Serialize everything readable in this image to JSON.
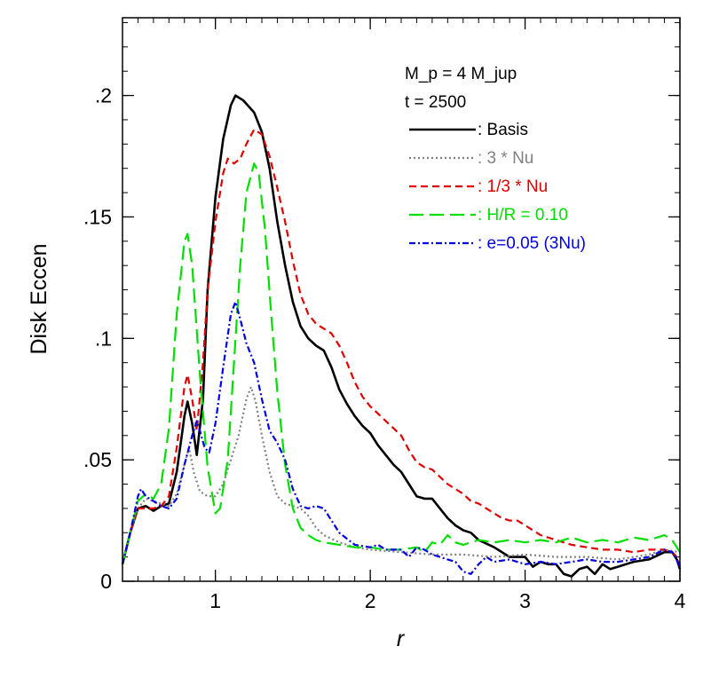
{
  "chart_data": {
    "type": "line",
    "title": "",
    "xlabel": "r",
    "ylabel": "Disk Eccen",
    "xlim": [
      0.4,
      4.0
    ],
    "ylim": [
      0,
      0.232
    ],
    "x_ticks": [
      {
        "value": 1,
        "label": "1"
      },
      {
        "value": 2,
        "label": "2"
      },
      {
        "value": 3,
        "label": "3"
      },
      {
        "value": 4,
        "label": "4"
      }
    ],
    "y_ticks": [
      {
        "value": 0,
        "label": "0"
      },
      {
        "value": 0.05,
        "label": ".05"
      },
      {
        "value": 0.1,
        "label": ".1"
      },
      {
        "value": 0.15,
        "label": ".15"
      },
      {
        "value": 0.2,
        "label": ".2"
      }
    ],
    "x_minor_step": 0.1,
    "y_minor_step": 0.01,
    "grid": false,
    "legend_position": "top-right",
    "annotations": [
      "M_p = 4 M_jup",
      "t = 2500"
    ],
    "series": [
      {
        "name": ": Basis",
        "color": "#000000",
        "dash": "solid",
        "points": [
          [
            0.4,
            0.007
          ],
          [
            0.45,
            0.02
          ],
          [
            0.5,
            0.03
          ],
          [
            0.55,
            0.031
          ],
          [
            0.6,
            0.029
          ],
          [
            0.65,
            0.031
          ],
          [
            0.7,
            0.032
          ],
          [
            0.75,
            0.045
          ],
          [
            0.8,
            0.068
          ],
          [
            0.82,
            0.074
          ],
          [
            0.85,
            0.065
          ],
          [
            0.88,
            0.052
          ],
          [
            0.92,
            0.075
          ],
          [
            0.95,
            0.12
          ],
          [
            1.0,
            0.158
          ],
          [
            1.05,
            0.182
          ],
          [
            1.1,
            0.196
          ],
          [
            1.13,
            0.2
          ],
          [
            1.18,
            0.198
          ],
          [
            1.25,
            0.193
          ],
          [
            1.3,
            0.185
          ],
          [
            1.35,
            0.17
          ],
          [
            1.4,
            0.148
          ],
          [
            1.45,
            0.13
          ],
          [
            1.5,
            0.115
          ],
          [
            1.55,
            0.105
          ],
          [
            1.6,
            0.1
          ],
          [
            1.65,
            0.097
          ],
          [
            1.7,
            0.095
          ],
          [
            1.75,
            0.088
          ],
          [
            1.8,
            0.079
          ],
          [
            1.85,
            0.073
          ],
          [
            1.9,
            0.068
          ],
          [
            1.95,
            0.064
          ],
          [
            2.0,
            0.061
          ],
          [
            2.05,
            0.056
          ],
          [
            2.1,
            0.052
          ],
          [
            2.15,
            0.048
          ],
          [
            2.2,
            0.045
          ],
          [
            2.25,
            0.04
          ],
          [
            2.3,
            0.035
          ],
          [
            2.35,
            0.034
          ],
          [
            2.4,
            0.034
          ],
          [
            2.45,
            0.03
          ],
          [
            2.5,
            0.026
          ],
          [
            2.55,
            0.023
          ],
          [
            2.6,
            0.021
          ],
          [
            2.65,
            0.02
          ],
          [
            2.7,
            0.017
          ],
          [
            2.8,
            0.014
          ],
          [
            2.9,
            0.01
          ],
          [
            3.0,
            0.01
          ],
          [
            3.05,
            0.006
          ],
          [
            3.1,
            0.008
          ],
          [
            3.15,
            0.007
          ],
          [
            3.2,
            0.007
          ],
          [
            3.25,
            0.003
          ],
          [
            3.3,
            0.002
          ],
          [
            3.35,
            0.005
          ],
          [
            3.4,
            0.006
          ],
          [
            3.45,
            0.003
          ],
          [
            3.5,
            0.007
          ],
          [
            3.55,
            0.005
          ],
          [
            3.6,
            0.006
          ],
          [
            3.7,
            0.008
          ],
          [
            3.8,
            0.009
          ],
          [
            3.9,
            0.012
          ],
          [
            3.95,
            0.012
          ],
          [
            3.98,
            0.009
          ],
          [
            4.0,
            0.005
          ]
        ]
      },
      {
        "name": ": 3 * Nu",
        "color": "#808080",
        "dash": "dotted",
        "points": [
          [
            0.4,
            0.007
          ],
          [
            0.45,
            0.02
          ],
          [
            0.5,
            0.03
          ],
          [
            0.55,
            0.034
          ],
          [
            0.6,
            0.033
          ],
          [
            0.65,
            0.032
          ],
          [
            0.7,
            0.031
          ],
          [
            0.75,
            0.036
          ],
          [
            0.8,
            0.048
          ],
          [
            0.83,
            0.055
          ],
          [
            0.86,
            0.045
          ],
          [
            0.9,
            0.037
          ],
          [
            0.95,
            0.035
          ],
          [
            1.0,
            0.035
          ],
          [
            1.05,
            0.04
          ],
          [
            1.1,
            0.05
          ],
          [
            1.15,
            0.06
          ],
          [
            1.2,
            0.075
          ],
          [
            1.23,
            0.08
          ],
          [
            1.26,
            0.074
          ],
          [
            1.3,
            0.06
          ],
          [
            1.35,
            0.045
          ],
          [
            1.4,
            0.035
          ],
          [
            1.45,
            0.032
          ],
          [
            1.5,
            0.031
          ],
          [
            1.55,
            0.03
          ],
          [
            1.6,
            0.027
          ],
          [
            1.65,
            0.022
          ],
          [
            1.7,
            0.019
          ],
          [
            1.8,
            0.016
          ],
          [
            1.9,
            0.014
          ],
          [
            2.0,
            0.013
          ],
          [
            2.2,
            0.012
          ],
          [
            2.4,
            0.011
          ],
          [
            2.6,
            0.011
          ],
          [
            2.8,
            0.01
          ],
          [
            3.0,
            0.011
          ],
          [
            3.2,
            0.01
          ],
          [
            3.4,
            0.01
          ],
          [
            3.6,
            0.009
          ],
          [
            3.8,
            0.011
          ],
          [
            3.9,
            0.013
          ],
          [
            4.0,
            0.012
          ]
        ]
      },
      {
        "name": ": 1/3 * Nu",
        "color": "#e00000",
        "dash": "dashed",
        "points": [
          [
            0.4,
            0.007
          ],
          [
            0.45,
            0.02
          ],
          [
            0.5,
            0.03
          ],
          [
            0.55,
            0.03
          ],
          [
            0.6,
            0.03
          ],
          [
            0.65,
            0.031
          ],
          [
            0.7,
            0.035
          ],
          [
            0.75,
            0.055
          ],
          [
            0.8,
            0.08
          ],
          [
            0.82,
            0.085
          ],
          [
            0.85,
            0.075
          ],
          [
            0.88,
            0.062
          ],
          [
            0.92,
            0.09
          ],
          [
            0.95,
            0.12
          ],
          [
            1.0,
            0.148
          ],
          [
            1.05,
            0.168
          ],
          [
            1.08,
            0.174
          ],
          [
            1.12,
            0.172
          ],
          [
            1.16,
            0.174
          ],
          [
            1.2,
            0.18
          ],
          [
            1.25,
            0.186
          ],
          [
            1.3,
            0.184
          ],
          [
            1.35,
            0.175
          ],
          [
            1.4,
            0.162
          ],
          [
            1.45,
            0.148
          ],
          [
            1.5,
            0.132
          ],
          [
            1.55,
            0.118
          ],
          [
            1.6,
            0.11
          ],
          [
            1.65,
            0.106
          ],
          [
            1.7,
            0.104
          ],
          [
            1.75,
            0.102
          ],
          [
            1.8,
            0.097
          ],
          [
            1.85,
            0.09
          ],
          [
            1.9,
            0.082
          ],
          [
            1.95,
            0.076
          ],
          [
            2.0,
            0.072
          ],
          [
            2.05,
            0.069
          ],
          [
            2.1,
            0.066
          ],
          [
            2.15,
            0.063
          ],
          [
            2.2,
            0.06
          ],
          [
            2.25,
            0.054
          ],
          [
            2.3,
            0.049
          ],
          [
            2.35,
            0.047
          ],
          [
            2.4,
            0.046
          ],
          [
            2.45,
            0.043
          ],
          [
            2.5,
            0.04
          ],
          [
            2.55,
            0.038
          ],
          [
            2.6,
            0.036
          ],
          [
            2.65,
            0.033
          ],
          [
            2.7,
            0.032
          ],
          [
            2.75,
            0.03
          ],
          [
            2.8,
            0.028
          ],
          [
            2.85,
            0.026
          ],
          [
            2.9,
            0.025
          ],
          [
            2.95,
            0.025
          ],
          [
            3.0,
            0.023
          ],
          [
            3.05,
            0.021
          ],
          [
            3.1,
            0.019
          ],
          [
            3.2,
            0.017
          ],
          [
            3.3,
            0.015
          ],
          [
            3.4,
            0.014
          ],
          [
            3.5,
            0.013
          ],
          [
            3.6,
            0.013
          ],
          [
            3.7,
            0.012
          ],
          [
            3.8,
            0.013
          ],
          [
            3.9,
            0.013
          ],
          [
            3.95,
            0.012
          ],
          [
            3.98,
            0.01
          ],
          [
            4.0,
            0.006
          ]
        ]
      },
      {
        "name": ": H/R = 0.10",
        "color": "#00e000",
        "dash": "long-dashed",
        "points": [
          [
            0.4,
            0.007
          ],
          [
            0.45,
            0.02
          ],
          [
            0.5,
            0.033
          ],
          [
            0.55,
            0.036
          ],
          [
            0.6,
            0.034
          ],
          [
            0.65,
            0.04
          ],
          [
            0.7,
            0.063
          ],
          [
            0.75,
            0.11
          ],
          [
            0.8,
            0.14
          ],
          [
            0.82,
            0.143
          ],
          [
            0.85,
            0.13
          ],
          [
            0.9,
            0.085
          ],
          [
            0.95,
            0.047
          ],
          [
            1.0,
            0.028
          ],
          [
            1.03,
            0.03
          ],
          [
            1.08,
            0.05
          ],
          [
            1.12,
            0.09
          ],
          [
            1.16,
            0.13
          ],
          [
            1.2,
            0.16
          ],
          [
            1.25,
            0.172
          ],
          [
            1.28,
            0.168
          ],
          [
            1.32,
            0.145
          ],
          [
            1.36,
            0.11
          ],
          [
            1.4,
            0.078
          ],
          [
            1.45,
            0.048
          ],
          [
            1.5,
            0.03
          ],
          [
            1.55,
            0.022
          ],
          [
            1.6,
            0.019
          ],
          [
            1.65,
            0.017
          ],
          [
            1.7,
            0.016
          ],
          [
            1.8,
            0.015
          ],
          [
            1.9,
            0.014
          ],
          [
            2.0,
            0.014
          ],
          [
            2.1,
            0.013
          ],
          [
            2.2,
            0.013
          ],
          [
            2.3,
            0.014
          ],
          [
            2.35,
            0.012
          ],
          [
            2.4,
            0.016
          ],
          [
            2.45,
            0.015
          ],
          [
            2.5,
            0.019
          ],
          [
            2.55,
            0.016
          ],
          [
            2.6,
            0.015
          ],
          [
            2.7,
            0.017
          ],
          [
            2.8,
            0.016
          ],
          [
            2.9,
            0.017
          ],
          [
            3.0,
            0.016
          ],
          [
            3.1,
            0.017
          ],
          [
            3.2,
            0.016
          ],
          [
            3.3,
            0.018
          ],
          [
            3.4,
            0.016
          ],
          [
            3.5,
            0.017
          ],
          [
            3.6,
            0.016
          ],
          [
            3.7,
            0.018
          ],
          [
            3.8,
            0.017
          ],
          [
            3.9,
            0.019
          ],
          [
            3.95,
            0.017
          ],
          [
            3.98,
            0.014
          ],
          [
            4.0,
            0.012
          ]
        ]
      },
      {
        "name": ": e=0.05 (3Nu)",
        "color": "#0000e0",
        "dash": "dash-dot",
        "points": [
          [
            0.4,
            0.007
          ],
          [
            0.45,
            0.02
          ],
          [
            0.5,
            0.035
          ],
          [
            0.52,
            0.038
          ],
          [
            0.55,
            0.035
          ],
          [
            0.6,
            0.033
          ],
          [
            0.65,
            0.031
          ],
          [
            0.7,
            0.03
          ],
          [
            0.75,
            0.034
          ],
          [
            0.8,
            0.048
          ],
          [
            0.85,
            0.06
          ],
          [
            0.88,
            0.066
          ],
          [
            0.9,
            0.062
          ],
          [
            0.93,
            0.055
          ],
          [
            0.96,
            0.053
          ],
          [
            1.0,
            0.065
          ],
          [
            1.05,
            0.088
          ],
          [
            1.1,
            0.11
          ],
          [
            1.13,
            0.115
          ],
          [
            1.16,
            0.108
          ],
          [
            1.2,
            0.098
          ],
          [
            1.25,
            0.09
          ],
          [
            1.3,
            0.075
          ],
          [
            1.35,
            0.062
          ],
          [
            1.4,
            0.057
          ],
          [
            1.45,
            0.05
          ],
          [
            1.5,
            0.038
          ],
          [
            1.55,
            0.031
          ],
          [
            1.6,
            0.03
          ],
          [
            1.65,
            0.031
          ],
          [
            1.7,
            0.03
          ],
          [
            1.75,
            0.025
          ],
          [
            1.8,
            0.02
          ],
          [
            1.9,
            0.015
          ],
          [
            2.0,
            0.014
          ],
          [
            2.05,
            0.015
          ],
          [
            2.1,
            0.013
          ],
          [
            2.2,
            0.013
          ],
          [
            2.25,
            0.01
          ],
          [
            2.3,
            0.014
          ],
          [
            2.35,
            0.013
          ],
          [
            2.4,
            0.011
          ],
          [
            2.5,
            0.009
          ],
          [
            2.55,
            0.008
          ],
          [
            2.6,
            0.004
          ],
          [
            2.65,
            0.003
          ],
          [
            2.7,
            0.007
          ],
          [
            2.75,
            0.01
          ],
          [
            2.8,
            0.008
          ],
          [
            2.9,
            0.009
          ],
          [
            3.0,
            0.007
          ],
          [
            3.1,
            0.008
          ],
          [
            3.2,
            0.007
          ],
          [
            3.3,
            0.008
          ],
          [
            3.4,
            0.009
          ],
          [
            3.5,
            0.008
          ],
          [
            3.6,
            0.008
          ],
          [
            3.7,
            0.009
          ],
          [
            3.8,
            0.01
          ],
          [
            3.9,
            0.013
          ],
          [
            3.95,
            0.012
          ],
          [
            3.98,
            0.009
          ],
          [
            4.0,
            0.005
          ]
        ]
      }
    ]
  }
}
